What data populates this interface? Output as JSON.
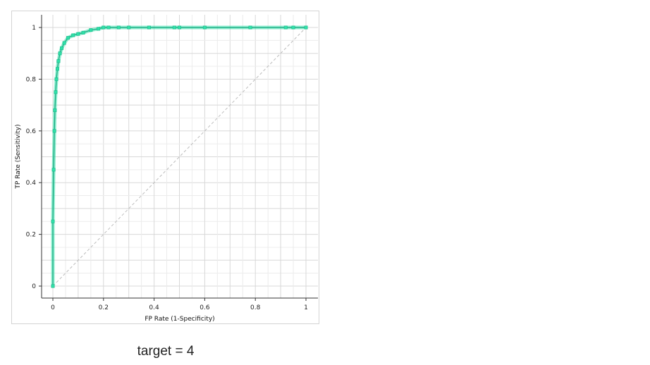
{
  "chart_data": {
    "type": "line",
    "title": "",
    "xlabel": "FP Rate (1-Specificity)",
    "ylabel": "TP Rate (Sensitivity)",
    "xlim": [
      0,
      1
    ],
    "ylim": [
      0,
      1
    ],
    "x_ticks": [
      "0",
      "0.2",
      "0.4",
      "0.6",
      "0.8",
      "1"
    ],
    "y_ticks": [
      "0",
      "0.2",
      "0.4",
      "0.6",
      "0.8",
      "1"
    ],
    "grid": true,
    "legend": "none",
    "diagonal_reference": true,
    "series": [
      {
        "color": "#2fe0a8",
        "x": [
          0,
          0,
          0.003,
          0.006,
          0.008,
          0.011,
          0.014,
          0.018,
          0.022,
          0.028,
          0.035,
          0.045,
          0.06,
          0.08,
          0.1,
          0.12,
          0.15,
          0.18,
          0.2,
          0.22,
          0.26,
          0.3,
          0.38,
          0.48,
          0.5,
          0.6,
          0.78,
          0.92,
          0.95,
          1
        ],
        "y": [
          0,
          0.25,
          0.45,
          0.6,
          0.68,
          0.75,
          0.8,
          0.84,
          0.87,
          0.9,
          0.92,
          0.94,
          0.96,
          0.97,
          0.975,
          0.98,
          0.99,
          0.995,
          1,
          1,
          1,
          1,
          1,
          1,
          1,
          1,
          1,
          1,
          1,
          1
        ]
      }
    ]
  },
  "caption": "target = 4"
}
